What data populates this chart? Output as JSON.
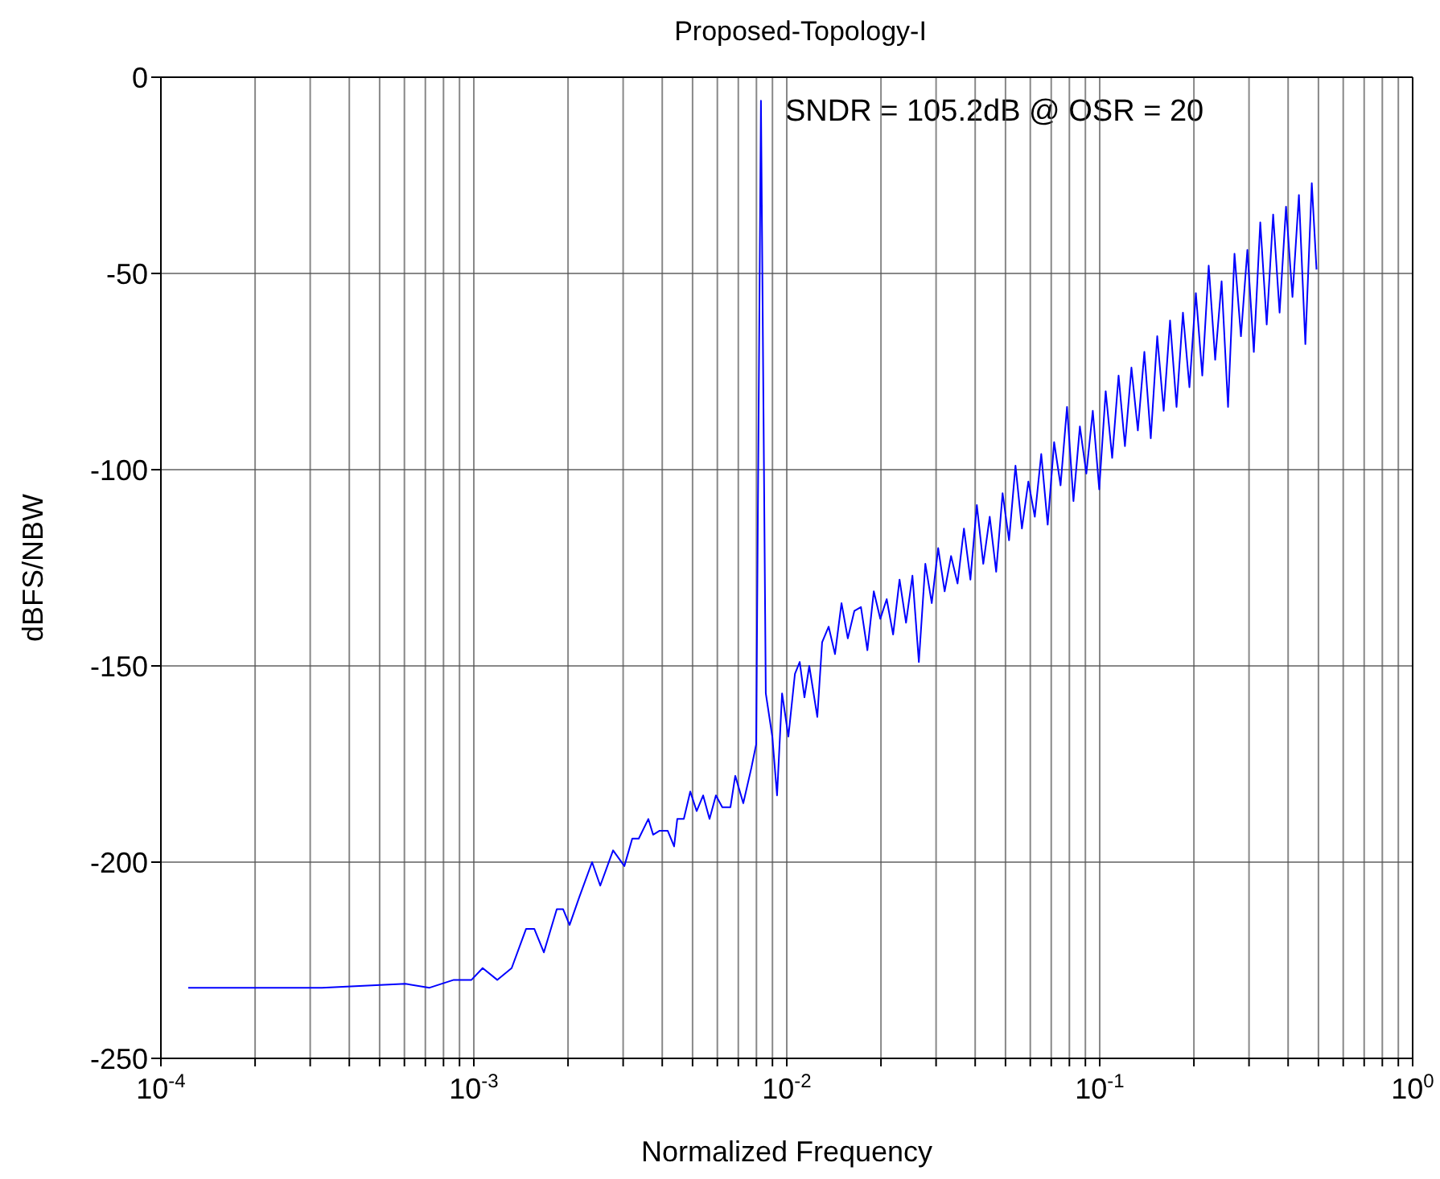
{
  "chart_data": {
    "type": "line",
    "title": "Proposed-Topology-I",
    "xlabel": "Normalized Frequency",
    "ylabel": "dBFS/NBW",
    "annotations": [
      "SNDR = 105.2dB @ OSR = 20"
    ],
    "log": "x",
    "grid": true,
    "xlim": [
      0.0001,
      1
    ],
    "ylim": [
      -250,
      0
    ],
    "xticks": [
      {
        "value": 0.0001,
        "label": "10$^{-4}$"
      },
      {
        "value": 0.0002,
        "label": null
      },
      {
        "value": 0.0003,
        "label": null
      },
      {
        "value": 0.0004,
        "label": null
      },
      {
        "value": 0.0005,
        "label": null
      },
      {
        "value": 0.0006,
        "label": null
      },
      {
        "value": 0.0007,
        "label": null
      },
      {
        "value": 0.0008,
        "label": null
      },
      {
        "value": 0.0009,
        "label": null
      },
      {
        "value": 0.001,
        "label": "10$^{-3}$"
      },
      {
        "value": 0.002,
        "label": null
      },
      {
        "value": 0.003,
        "label": null
      },
      {
        "value": 0.004,
        "label": null
      },
      {
        "value": 0.005,
        "label": null
      },
      {
        "value": 0.006,
        "label": null
      },
      {
        "value": 0.007,
        "label": null
      },
      {
        "value": 0.008,
        "label": null
      },
      {
        "value": 0.009,
        "label": null
      },
      {
        "value": 0.01,
        "label": "10$^{-2}$"
      },
      {
        "value": 0.02,
        "label": null
      },
      {
        "value": 0.03,
        "label": null
      },
      {
        "value": 0.04,
        "label": null
      },
      {
        "value": 0.05,
        "label": null
      },
      {
        "value": 0.06,
        "label": null
      },
      {
        "value": 0.07,
        "label": null
      },
      {
        "value": 0.08,
        "label": null
      },
      {
        "value": 0.09,
        "label": null
      },
      {
        "value": 0.1,
        "label": "10$^{-1}$"
      },
      {
        "value": 0.2,
        "label": null
      },
      {
        "value": 0.3,
        "label": null
      },
      {
        "value": 0.4,
        "label": null
      },
      {
        "value": 0.5,
        "label": null
      },
      {
        "value": 0.6,
        "label": null
      },
      {
        "value": 0.7,
        "label": null
      },
      {
        "value": 0.8,
        "label": null
      },
      {
        "value": 0.9,
        "label": null
      },
      {
        "value": 1,
        "label": "10$^{0}$"
      }
    ],
    "yticks": [
      -250,
      -200,
      -150,
      -100,
      -50,
      0
    ],
    "marker": "none",
    "line_style": "solid",
    "series": [
      {
        "color": "#0000ff",
        "x": [
          0.0001223,
          0.000181,
          0.000327,
          0.000604,
          0.000722,
          0.000863,
          0.000983,
          0.001067,
          0.001188,
          0.001321,
          0.001469,
          0.00156,
          0.001674,
          0.001841,
          0.001929,
          0.002023,
          0.002171,
          0.002387,
          0.002535,
          0.002786,
          0.003027,
          0.003208,
          0.003365,
          0.003611,
          0.003741,
          0.003926,
          0.004164,
          0.004365,
          0.004468,
          0.004688,
          0.004916,
          0.005152,
          0.005404,
          0.005665,
          0.005937,
          0.006223,
          0.006607,
          0.006845,
          0.007261,
          0.007706,
          0.007983,
          0.00827,
          0.00857,
          0.00899,
          0.00931,
          0.00966,
          0.01012,
          0.01062,
          0.011,
          0.01139,
          0.0118,
          0.01252,
          0.01297,
          0.01361,
          0.01426,
          0.01496,
          0.01567,
          0.01644,
          0.01726,
          0.0181,
          0.01897,
          0.0199,
          0.02086,
          0.02187,
          0.02293,
          0.02405,
          0.02521,
          0.02643,
          0.02772,
          0.02906,
          0.03047,
          0.03195,
          0.0335,
          0.03513,
          0.03683,
          0.03862,
          0.04049,
          0.04246,
          0.04452,
          0.04668,
          0.04894,
          0.05132,
          0.05381,
          0.05642,
          0.05916,
          0.06203,
          0.06504,
          0.0682,
          0.07151,
          0.07498,
          0.07862,
          0.08243,
          0.08643,
          0.09063,
          0.09503,
          0.09964,
          0.1045,
          0.1096,
          0.1149,
          0.1204,
          0.1263,
          0.1324,
          0.1389,
          0.1456,
          0.1527,
          0.1601,
          0.1678,
          0.176,
          0.1845,
          0.1935,
          0.2029,
          0.2127,
          0.223,
          0.2339,
          0.2452,
          0.2571,
          0.2696,
          0.2827,
          0.2964,
          0.3108,
          0.3259,
          0.3417,
          0.3583,
          0.3757,
          0.3939,
          0.413,
          0.4331,
          0.4541,
          0.4761,
          0.493
        ],
        "values": [
          -232,
          -232,
          -232,
          -231,
          -232,
          -230,
          -230,
          -227,
          -230,
          -227,
          -217,
          -217,
          -223,
          -212,
          -212,
          -216,
          -209,
          -200,
          -206,
          -197,
          -201,
          -194,
          -194,
          -189,
          -193,
          -192,
          -192,
          -196,
          -189,
          -189,
          -182,
          -187,
          -183,
          -189,
          -183,
          -186,
          -186,
          -178,
          -185,
          -176,
          -170,
          -6,
          -157,
          -168,
          -183,
          -157,
          -168,
          -152,
          -149,
          -158,
          -150,
          -163,
          -144,
          -140,
          -147,
          -134,
          -143,
          -136,
          -135,
          -146,
          -131,
          -138,
          -133,
          -142,
          -128,
          -139,
          -127,
          -149,
          -124,
          -134,
          -120,
          -131,
          -122,
          -129,
          -115,
          -128,
          -109,
          -124,
          -112,
          -126,
          -106,
          -118,
          -99,
          -115,
          -103,
          -112,
          -96,
          -114,
          -93,
          -104,
          -84,
          -108,
          -89,
          -101,
          -85,
          -105,
          -80,
          -97,
          -76,
          -94,
          -74,
          -90,
          -70,
          -92,
          -66,
          -85,
          -62,
          -84,
          -60,
          -79,
          -55,
          -76,
          -48,
          -72,
          -52,
          -84,
          -45,
          -66,
          -44,
          -70,
          -37,
          -63,
          -35,
          -60,
          -33,
          -56,
          -30,
          -68,
          -27,
          -49
        ]
      }
    ]
  }
}
